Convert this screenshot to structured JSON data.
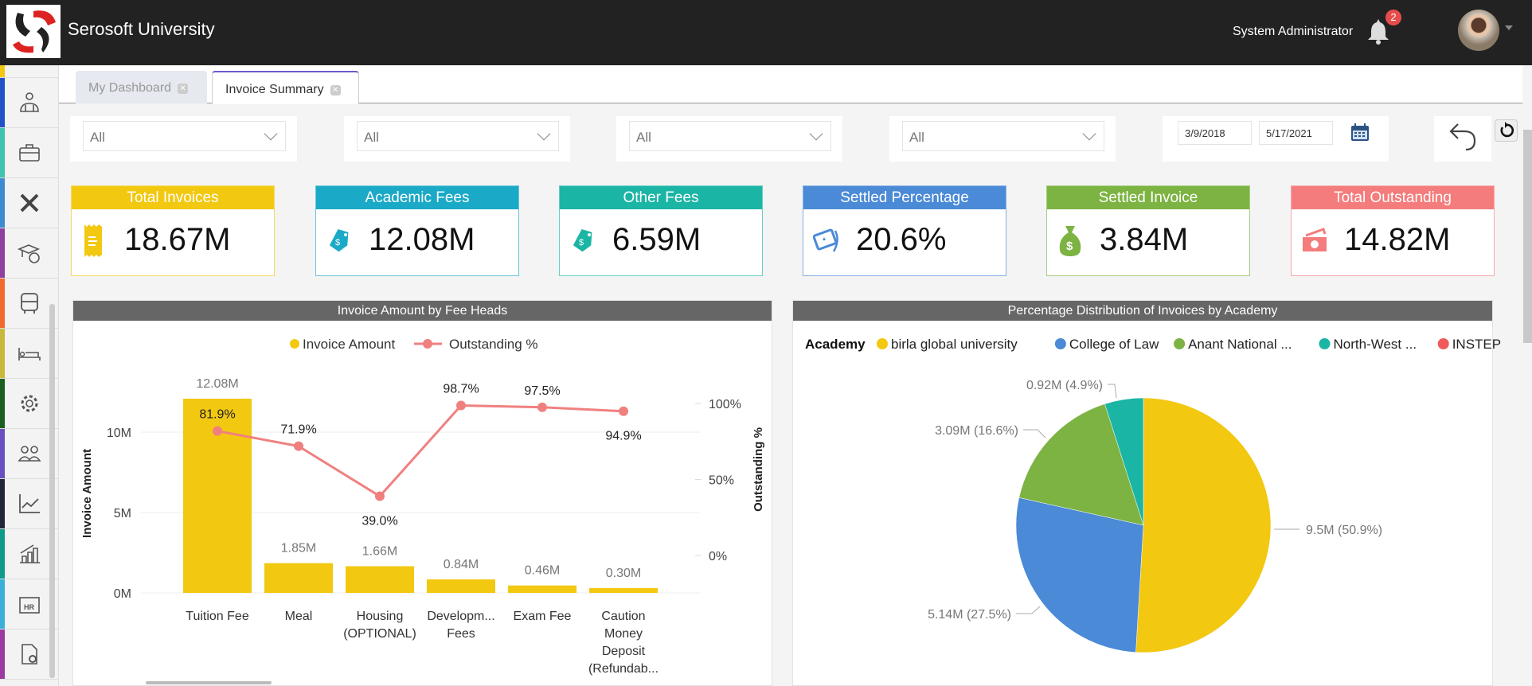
{
  "header": {
    "app_title": "Serosoft University",
    "user_name": "System Administrator",
    "notification_count": "2"
  },
  "sidebar": {
    "colors": [
      "#f2c811",
      "#2250c8",
      "#3fc2b0",
      "#3d8bd0",
      "#8e3fa0",
      "#f26a30",
      "#c9b93a",
      "#1b5e20",
      "#6a4fc0",
      "#22263a",
      "#0f9a8a",
      "#3ab0d8",
      "#9b3aa0"
    ],
    "icons": [
      "dashboard-icon",
      "users-org-icon",
      "briefcase-icon",
      "tools-icon",
      "scholarship-icon",
      "bus-icon",
      "bed-icon",
      "gear-icon",
      "people-icon",
      "trend-chart-icon",
      "bar-growth-icon",
      "hr-icon",
      "document-settings-icon"
    ]
  },
  "tabs": [
    {
      "label": "My Dashboard",
      "active": false
    },
    {
      "label": "Invoice Summary",
      "active": true
    }
  ],
  "filters": {
    "dropdowns": [
      "All",
      "All",
      "All",
      "All"
    ],
    "date_from": "3/9/2018",
    "date_to": "5/17/2021"
  },
  "kpis": [
    {
      "title": "Total Invoices",
      "value": "18.67M",
      "color": "#f2c811",
      "icon": "receipt-icon"
    },
    {
      "title": "Academic Fees",
      "value": "12.08M",
      "color": "#1aa9c6",
      "icon": "price-tag-icon"
    },
    {
      "title": "Other Fees",
      "value": "6.59M",
      "color": "#1bb5a5",
      "icon": "price-tag-icon"
    },
    {
      "title": "Settled Percentage",
      "value": "20.6%",
      "color": "#4a8ad6",
      "icon": "ticket-icon"
    },
    {
      "title": "Settled Invoice",
      "value": "3.84M",
      "color": "#7cb342",
      "icon": "money-bag-icon"
    },
    {
      "title": "Total Outstanding",
      "value": "14.82M",
      "color": "#f47c7c",
      "icon": "cash-icon"
    }
  ],
  "chart_data": [
    {
      "type": "bar+line",
      "title": "Invoice Amount by Fee Heads",
      "categories": [
        [
          "Tuition Fee"
        ],
        [
          "Meal"
        ],
        [
          "Housing",
          "(OPTIONAL)"
        ],
        [
          "Developm...",
          "Fees"
        ],
        [
          "Exam Fee"
        ],
        [
          "Caution",
          "Money",
          "Deposit",
          "(Refundab..."
        ]
      ],
      "series": [
        {
          "name": "Invoice Amount",
          "type": "bar",
          "axis": "left",
          "color": "#f2c811",
          "values": [
            12.08,
            1.85,
            1.66,
            0.84,
            0.46,
            0.3
          ],
          "labels": [
            "12.08M",
            "1.85M",
            "1.66M",
            "0.84M",
            "0.46M",
            "0.30M"
          ]
        },
        {
          "name": "Outstanding %",
          "type": "line",
          "axis": "right",
          "color": "#f08080",
          "values": [
            81.9,
            71.9,
            39.0,
            98.7,
            97.5,
            94.9
          ],
          "labels": [
            "81.9%",
            "71.9%",
            "39.0%",
            "98.7%",
            "97.5%",
            "94.9%"
          ]
        }
      ],
      "ylabel": "Invoice Amount",
      "y2label": "Outstanding %",
      "yticks": [
        {
          "v": 0,
          "l": "0M"
        },
        {
          "v": 5,
          "l": "5M"
        },
        {
          "v": 10,
          "l": "10M"
        }
      ],
      "y2ticks": [
        {
          "v": 0,
          "l": "0%"
        },
        {
          "v": 50,
          "l": "50%"
        },
        {
          "v": 100,
          "l": "100%"
        }
      ],
      "legend": "top-center",
      "grid": true
    },
    {
      "type": "pie",
      "title": "Percentage Distribution of Invoices by Academy",
      "legend_title": "Academy",
      "legend": "top-left",
      "slices": [
        {
          "name": "birla global university",
          "value": 9.5,
          "percent": 50.9,
          "label": "9.5M (50.9%)",
          "color": "#f2c811"
        },
        {
          "name": "College of Law",
          "value": 5.14,
          "percent": 27.5,
          "label": "5.14M (27.5%)",
          "color": "#4a8ad6"
        },
        {
          "name": "Anant National ...",
          "value": 3.09,
          "percent": 16.6,
          "label": "3.09M (16.6%)",
          "color": "#7cb342"
        },
        {
          "name": "North-West ...",
          "value": 0.92,
          "percent": 4.9,
          "label": "0.92M (4.9%)",
          "color": "#1bb5a5"
        },
        {
          "name": "INSTEP",
          "value": 0,
          "percent": 0,
          "label": "",
          "color": "#f05a5a"
        }
      ]
    }
  ]
}
